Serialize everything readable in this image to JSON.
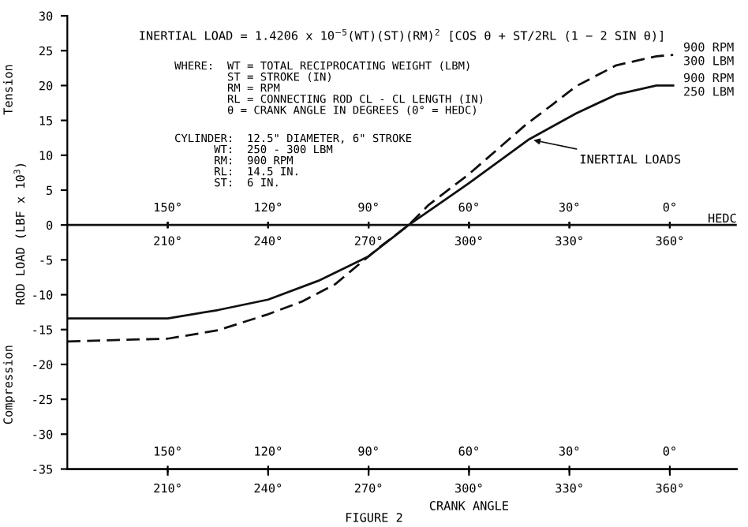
{
  "chart_data": {
    "type": "line",
    "title": "INERTIAL LOAD = 1.4206 x 10$^{−5}$(WT)(ST)(RM)$^{2}$ [COS θ + ST/2RL (1 − 2 SIN θ)]",
    "xlabel": "CRANK ANGLE",
    "ylabel": "ROD LOAD (LBF x 10$^{3}$)",
    "annotations": [
      "WHERE:  WT = TOTAL RECIPROCATING WEIGHT (LBM)\n        ST = STROKE (IN)\n        RM = RPM\n        RL = CONNECTING ROD CL - CL LENGTH (IN)\n        θ = CRANK ANGLE IN DEGREES (0° = HEDC)",
      "CYLINDER:  12.5\" DIAMETER, 6\" STROKE\n      WT:  250 - 300 LBM\n      RM:  900 RPM\n      RL:  14.5 IN.\n      ST:  6 IN.",
      "Tension",
      "Compression",
      "FIGURE 2",
      {
        "text": "INERTIAL LOADS",
        "x": 318,
        "y": 12.3
      }
    ],
    "series": [
      {
        "name": "900 RPM\n300 LBM",
        "color": "#111111",
        "line_style": "dashed",
        "x": [
          180,
          210,
          225,
          240,
          250,
          260,
          273,
          282,
          288,
          300,
          317,
          325,
          332,
          344,
          356,
          361
        ],
        "values": [
          -16.7,
          -16.3,
          -15.1,
          -12.8,
          -11,
          -8.5,
          -3.3,
          0,
          2.9,
          7.3,
          14.4,
          17.3,
          19.9,
          22.9,
          24.2,
          24.4
        ]
      },
      {
        "name": "900 RPM\n250 LBM",
        "color": "#111111",
        "line_style": "solid",
        "x": [
          180,
          210,
          225,
          240,
          255,
          270,
          282,
          300,
          318,
          332,
          344,
          356,
          361
        ],
        "values": [
          -13.4,
          -13.4,
          -12.2,
          -10.7,
          -8,
          -4.5,
          0,
          6,
          12.3,
          16,
          18.7,
          20,
          20
        ]
      }
    ],
    "xlim": [
      180,
      380
    ],
    "xticks": [
      {
        "value": 210,
        "label": "210°"
      },
      {
        "value": 240,
        "label": "240°"
      },
      {
        "value": 270,
        "label": "270°"
      },
      {
        "value": 300,
        "label": "300°"
      },
      {
        "value": 330,
        "label": "330°"
      },
      {
        "value": 360,
        "label": "360°"
      }
    ],
    "x2lim": [
      180,
      -20
    ],
    "x2ticks": [
      {
        "value": 150,
        "label": "150°"
      },
      {
        "value": 120,
        "label": "120°"
      },
      {
        "value": 90,
        "label": "90°"
      },
      {
        "value": 60,
        "label": "60°"
      },
      {
        "value": 30,
        "label": "30°"
      },
      {
        "value": 0,
        "label": "0°"
      }
    ],
    "ylim": [
      -35,
      30
    ],
    "yticks": [
      -35,
      -30,
      -25,
      -20,
      -15,
      -10,
      -5,
      0,
      5,
      10,
      15,
      20,
      25,
      30
    ],
    "ref_lines": [
      {
        "axis": "y",
        "value": 0,
        "label": "HEDC"
      }
    ],
    "grid": false,
    "legend": false
  }
}
